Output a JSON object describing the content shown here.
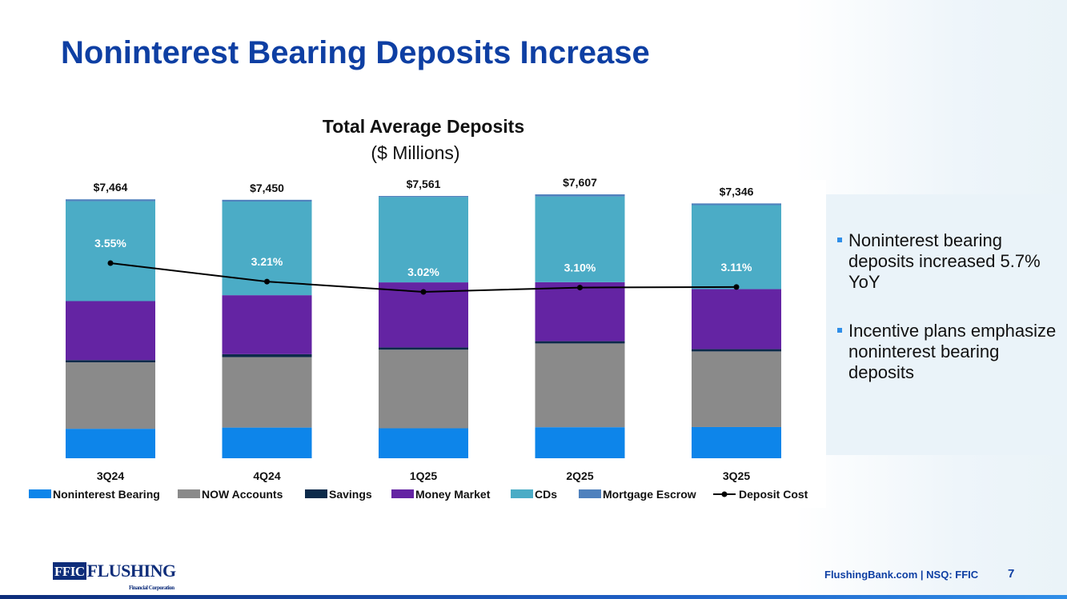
{
  "slide": {
    "title": "Noninterest Bearing Deposits Increase"
  },
  "chart_data": {
    "type": "bar",
    "stacked": true,
    "title": "Total Average Deposits",
    "subtitle": "($ Millions)",
    "categories": [
      "3Q24",
      "4Q24",
      "1Q25",
      "2Q25",
      "3Q25"
    ],
    "totals": [
      "$7,464",
      "$7,450",
      "$7,561",
      "$7,607",
      "$7,346"
    ],
    "ylim": [
      0,
      7700
    ],
    "series": [
      {
        "name": "Noninterest Bearing",
        "color": "#0d85ea",
        "values": [
          850,
          885,
          865,
          895,
          900
        ]
      },
      {
        "name": "NOW Accounts",
        "color": "#8a8a8a",
        "values": [
          1915,
          2030,
          2265,
          2415,
          2180
        ]
      },
      {
        "name": "Savings",
        "color": "#0c2a4a",
        "values": [
          65,
          85,
          65,
          65,
          65
        ]
      },
      {
        "name": "Money Market",
        "color": "#6424a3",
        "values": [
          1700,
          1700,
          1875,
          1700,
          1730
        ]
      },
      {
        "name": "CDs",
        "color": "#4bacc6",
        "values": [
          2880,
          2700,
          2460,
          2472,
          2421
        ]
      },
      {
        "name": "Mortgage Escrow",
        "color": "#4f81bd",
        "values": [
          54,
          50,
          31,
          60,
          50
        ]
      }
    ],
    "line": {
      "name": "Deposit Cost",
      "color": "#000000",
      "values": [
        3.55,
        3.21,
        3.02,
        3.1,
        3.11
      ],
      "labels": [
        "3.55%",
        "3.21%",
        "3.02%",
        "3.10%",
        "3.11%"
      ]
    },
    "legend": [
      "Noninterest Bearing",
      "NOW Accounts",
      "Savings",
      "Money Market",
      "CDs",
      "Mortgage Escrow",
      "Deposit Cost"
    ],
    "legend_position": "bottom"
  },
  "bullets": [
    "Noninterest bearing deposits increased 5.7% YoY",
    "Incentive plans emphasize noninterest bearing deposits"
  ],
  "footer": {
    "logo_box": "FFIC",
    "logo_word": "FLUSHING",
    "logo_sub": "Financial Corporation",
    "text": "FlushingBank.com  |  NSQ: FFIC",
    "page": "7"
  }
}
